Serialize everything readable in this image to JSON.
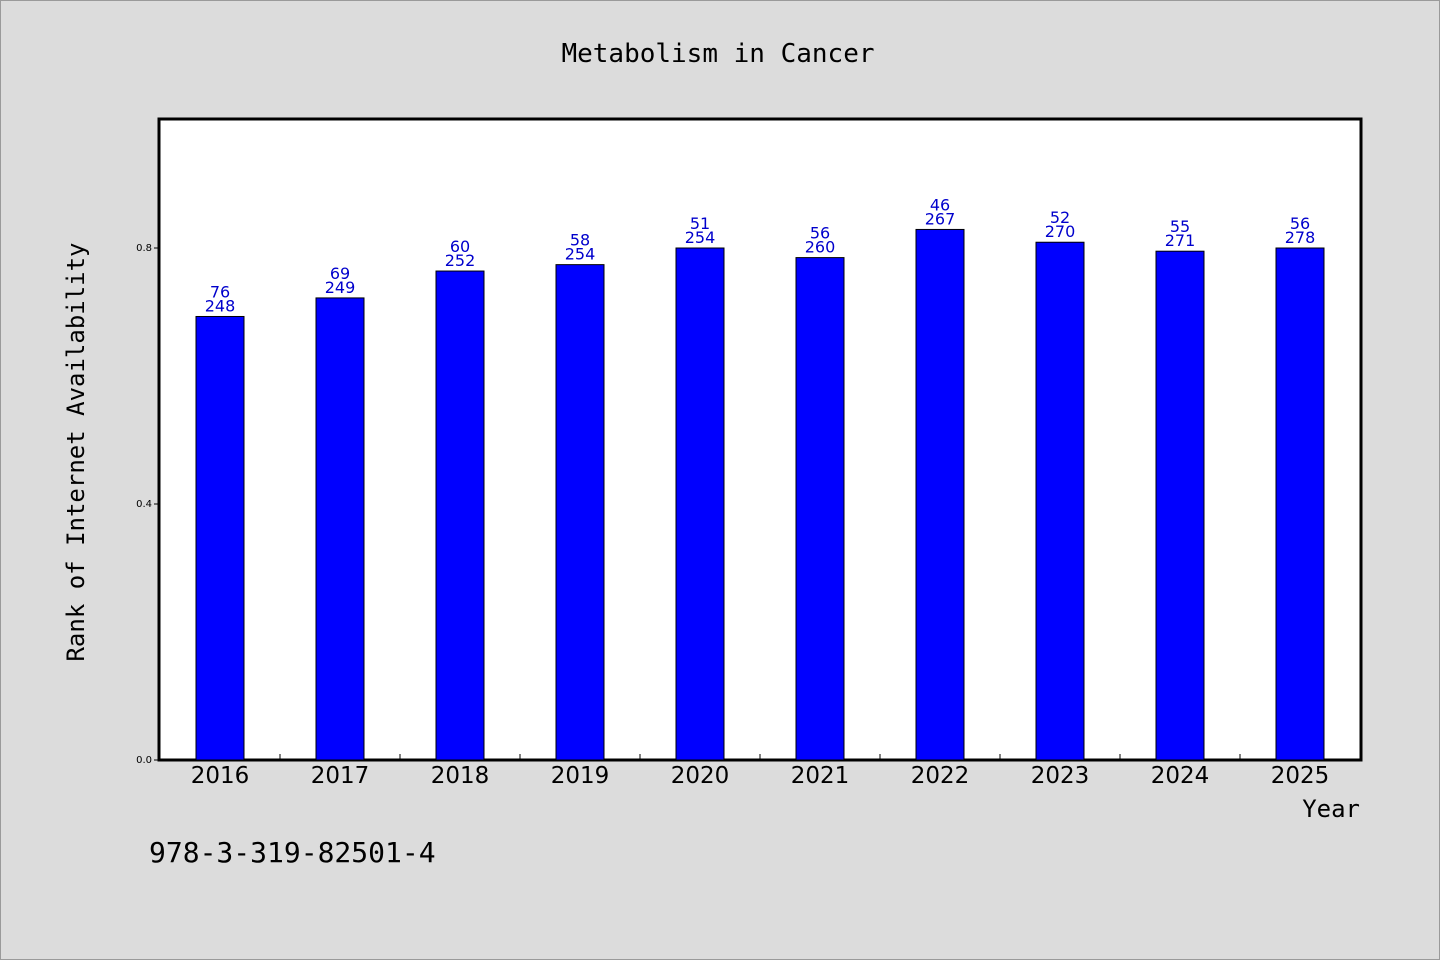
{
  "chart_data": {
    "type": "bar",
    "title": "Metabolism in Cancer",
    "xlabel": "Year",
    "ylabel": "Rank of Internet Availability",
    "categories": [
      "2016",
      "2017",
      "2018",
      "2019",
      "2020",
      "2021",
      "2022",
      "2023",
      "2024",
      "2025"
    ],
    "values": [
      0.693,
      0.722,
      0.764,
      0.774,
      0.8,
      0.785,
      0.829,
      0.809,
      0.795,
      0.8
    ],
    "bar_labels_top": [
      "76",
      "69",
      "60",
      "58",
      "51",
      "56",
      "46",
      "52",
      "55",
      "56"
    ],
    "bar_labels_bottom": [
      "248",
      "249",
      "252",
      "254",
      "254",
      "260",
      "267",
      "270",
      "271",
      "278"
    ],
    "ylim": [
      0,
      1.0
    ],
    "yticks": [
      0.0,
      0.4,
      0.8
    ],
    "ytick_labels": [
      "0.0",
      "0.4",
      "0.8"
    ],
    "bar_color": "#0000ff",
    "label_color": "#0000cc",
    "grid": false,
    "legend": "none"
  },
  "footer": {
    "isbn": "978-3-319-82501-4"
  }
}
